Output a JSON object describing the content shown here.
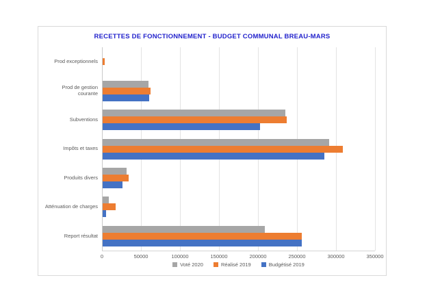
{
  "title": "RECETTES DE FONCTIONNEMENT - BUDGET COMMUNAL BREAU-MARS",
  "title_color": "#2222cc",
  "chart_data": {
    "type": "bar",
    "orientation": "horizontal",
    "title": "RECETTES DE FONCTIONNEMENT - BUDGET COMMUNAL BREAU-MARS",
    "categories": [
      "Prod exceptionnels",
      "Prod de gestion courante",
      "Subventions",
      "Impôts et taxes",
      "Produits divers",
      "Atténuation de charges",
      "Report résultat"
    ],
    "series": [
      {
        "name": "Voté 2020",
        "color": "#a6a6a6",
        "values": [
          0,
          59000,
          234000,
          290000,
          31000,
          8000,
          208000
        ]
      },
      {
        "name": "Réalisé 2019",
        "color": "#ed7d31",
        "values": [
          2500,
          61500,
          236000,
          308000,
          33000,
          16500,
          255000
        ]
      },
      {
        "name": "Budgétisé 2019",
        "color": "#4472c4",
        "values": [
          0,
          60000,
          202000,
          284000,
          25000,
          4000,
          255000
        ]
      }
    ],
    "xlim": [
      0,
      350000
    ],
    "x_ticks": [
      "0",
      "50000",
      "100000",
      "150000",
      "200000",
      "250000",
      "300000",
      "350000"
    ],
    "grid": true,
    "legend_position": "bottom",
    "gridline_color": "#e3e3e3",
    "axis_line_color": "#c9c9c9",
    "label_color": "#595959"
  }
}
